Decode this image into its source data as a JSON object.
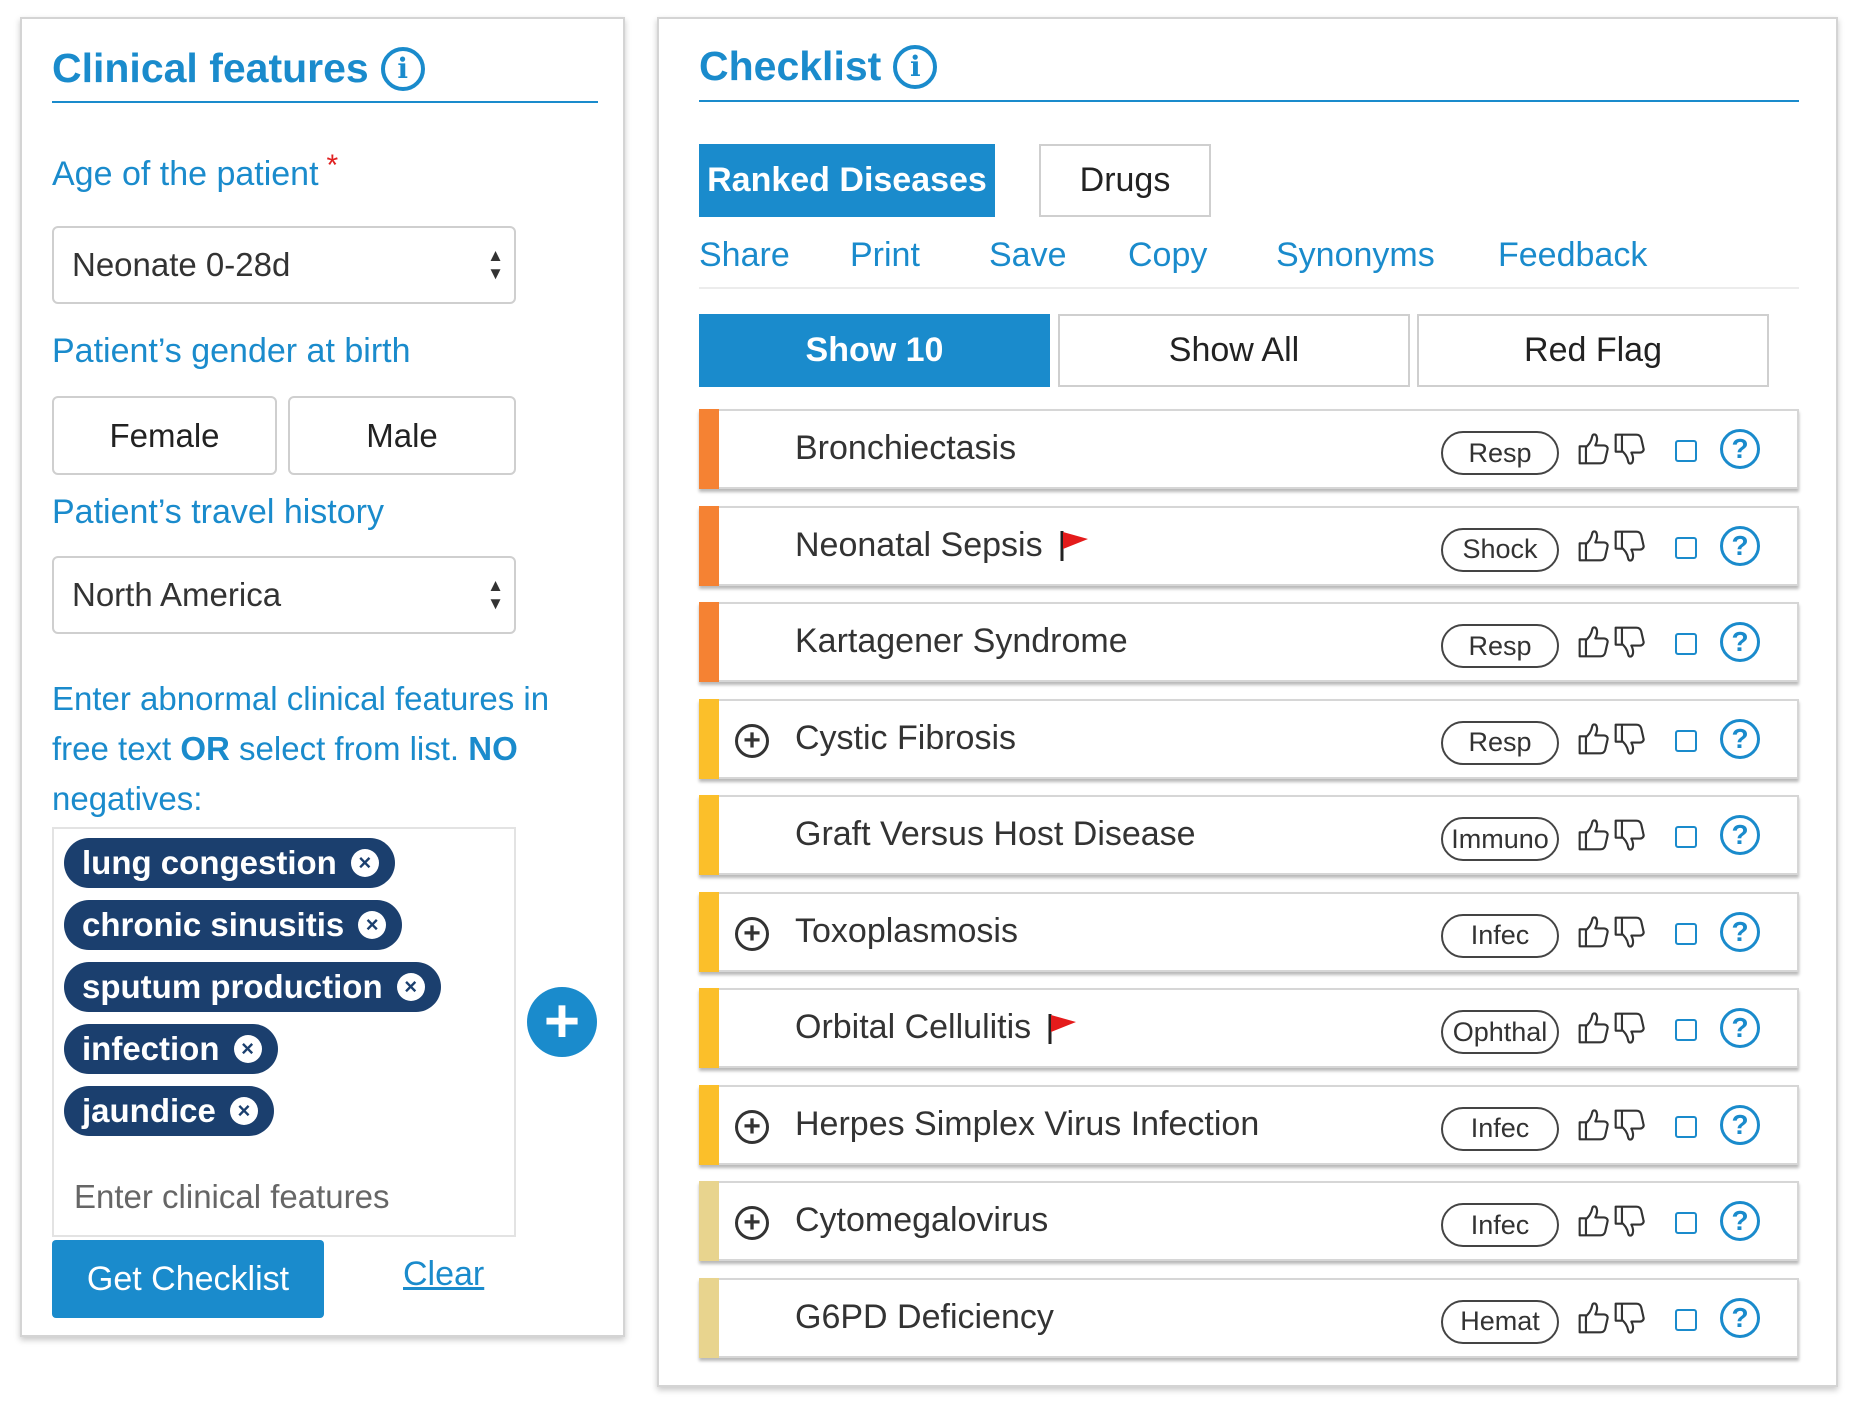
{
  "clinical": {
    "title": "Clinical features",
    "age_label": "Age of the patient",
    "required_marker": "*",
    "age_value": "Neonate 0-28d",
    "gender_label": "Patient’s gender at birth",
    "gender_female": "Female",
    "gender_male": "Male",
    "travel_label": "Patient’s travel history",
    "travel_value": "North America",
    "instructions": {
      "part1": "Enter abnormal clinical features in free text ",
      "or": "OR",
      "part2": " select from list. ",
      "no": "NO",
      "part3": " negatives:"
    },
    "tags": [
      {
        "label": "lung congestion"
      },
      {
        "label": "chronic sinusitis"
      },
      {
        "label": "sputum production"
      },
      {
        "label": "infection"
      },
      {
        "label": "jaundice"
      }
    ],
    "features_placeholder": "Enter clinical features",
    "get_checklist": "Get Checklist",
    "clear": "Clear"
  },
  "checklist": {
    "title": "Checklist",
    "tabs": {
      "ranked": "Ranked Diseases",
      "drugs": "Drugs"
    },
    "actions": {
      "share": "Share",
      "print": "Print",
      "save": "Save",
      "copy": "Copy",
      "synonyms": "Synonyms",
      "feedback": "Feedback"
    },
    "filters": {
      "show10": "Show 10",
      "showAll": "Show All",
      "redFlag": "Red Flag"
    },
    "diseases": [
      {
        "name": "Bronchiectasis",
        "category": "Resp",
        "color": "#f58233",
        "flag": false,
        "expandable": false
      },
      {
        "name": "Neonatal Sepsis",
        "category": "Shock",
        "color": "#f58233",
        "flag": true,
        "expandable": false
      },
      {
        "name": "Kartagener Syndrome",
        "category": "Resp",
        "color": "#f58233",
        "flag": false,
        "expandable": false
      },
      {
        "name": "Cystic Fibrosis",
        "category": "Resp",
        "color": "#fbbf2a",
        "flag": false,
        "expandable": true
      },
      {
        "name": "Graft Versus Host Disease",
        "category": "Immuno",
        "color": "#fbbf2a",
        "flag": false,
        "expandable": false
      },
      {
        "name": "Toxoplasmosis",
        "category": "Infec",
        "color": "#fbbf2a",
        "flag": false,
        "expandable": true
      },
      {
        "name": "Orbital Cellulitis",
        "category": "Ophthal",
        "color": "#fbbf2a",
        "flag": true,
        "expandable": false
      },
      {
        "name": "Herpes Simplex Virus Infection",
        "category": "Infec",
        "color": "#fbbf2a",
        "flag": false,
        "expandable": true
      },
      {
        "name": "Cytomegalovirus",
        "category": "Infec",
        "color": "#e8d48e",
        "flag": false,
        "expandable": true
      },
      {
        "name": "G6PD Deficiency",
        "category": "Hemat",
        "color": "#e8d48e",
        "flag": false,
        "expandable": false
      }
    ]
  },
  "icons": {
    "info": "info-icon",
    "select_arrows": "updown-arrows-icon",
    "tag_remove": "close-circle-icon",
    "add": "plus-circle-icon",
    "expand": "plus-circle-outline-icon",
    "flag": "red-flag-icon",
    "thumbs_up": "thumbs-up-icon",
    "thumbs_down": "thumbs-down-icon",
    "checkbox": "checkbox-icon",
    "help": "question-circle-icon"
  },
  "colors": {
    "accent": "#1a8bcc",
    "tag_bg": "#1b3f6e",
    "required": "#e02020",
    "priority_high": "#f58233",
    "priority_mid": "#fbbf2a",
    "priority_low": "#e8d48e"
  }
}
